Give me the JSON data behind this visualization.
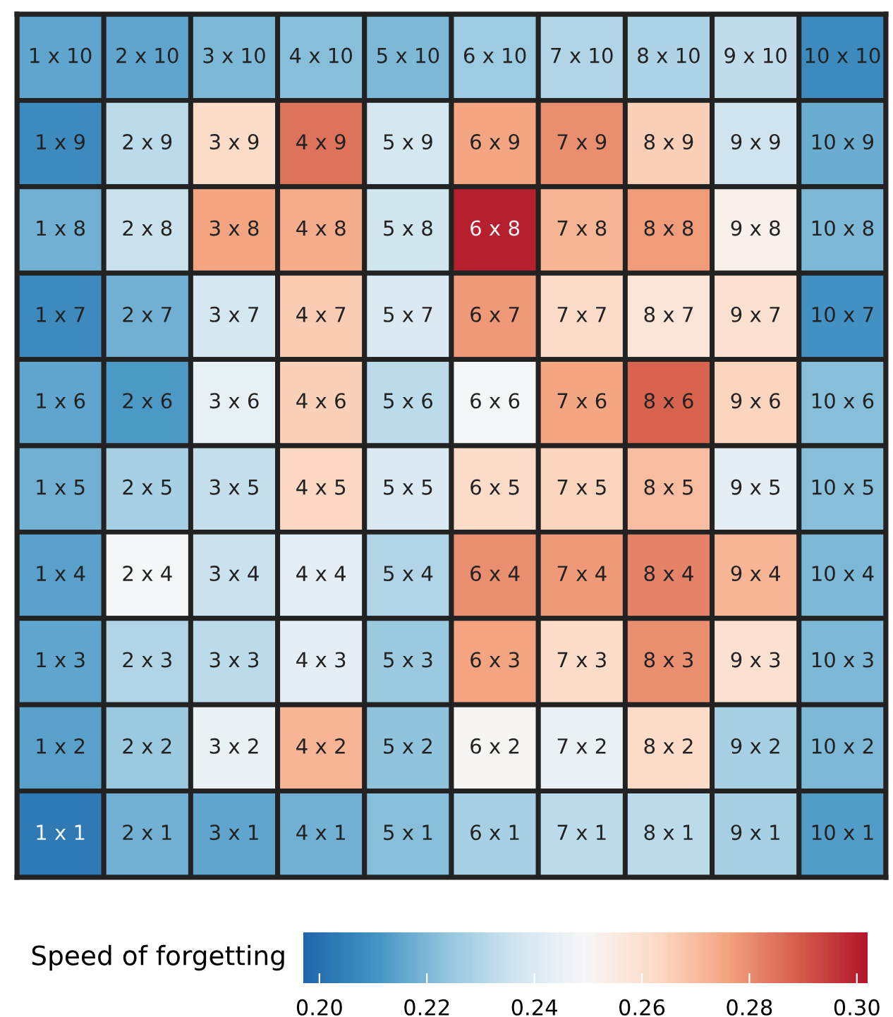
{
  "chart_data": {
    "type": "heatmap",
    "clabel": "Speed of forgetting",
    "categories": [
      null,
      null,
      null,
      null,
      null,
      null,
      null,
      null,
      null,
      null
    ],
    "y_categories": [
      null,
      null,
      null,
      null,
      null,
      null,
      null,
      null,
      null,
      null
    ],
    "cells": [
      [
        0.215,
        0.215,
        0.22,
        0.222,
        0.22,
        0.226,
        0.23,
        0.229,
        0.233,
        0.208
      ],
      [
        0.208,
        0.232,
        0.262,
        0.285,
        0.238,
        0.275,
        0.28,
        0.265,
        0.236,
        0.217
      ],
      [
        0.218,
        0.235,
        0.276,
        0.274,
        0.237,
        0.3,
        0.272,
        0.277,
        0.253,
        0.22
      ],
      [
        0.208,
        0.218,
        0.238,
        0.266,
        0.24,
        0.278,
        0.262,
        0.258,
        0.26,
        0.21
      ],
      [
        0.215,
        0.212,
        0.244,
        0.265,
        0.232,
        0.249,
        0.275,
        0.288,
        0.264,
        0.222
      ],
      [
        0.218,
        0.228,
        0.234,
        0.263,
        0.24,
        0.262,
        0.264,
        0.27,
        0.243,
        0.222
      ],
      [
        0.214,
        0.249,
        0.235,
        0.243,
        0.23,
        0.28,
        0.278,
        0.282,
        0.272,
        0.22
      ],
      [
        0.215,
        0.23,
        0.232,
        0.243,
        0.225,
        0.276,
        0.262,
        0.28,
        0.26,
        0.22
      ],
      [
        0.214,
        0.225,
        0.245,
        0.272,
        0.223,
        0.25,
        0.245,
        0.262,
        0.228,
        0.22
      ],
      [
        0.203,
        0.218,
        0.215,
        0.218,
        0.222,
        0.228,
        0.232,
        0.232,
        0.228,
        0.213
      ]
    ],
    "cell_labels": [
      [
        "1 x 10",
        "2 x 10",
        "3 x 10",
        "4 x 10",
        "5 x 10",
        "6 x 10",
        "7 x 10",
        "8 x 10",
        "9 x 10",
        "10 x 10"
      ],
      [
        "1 x 9",
        "2 x 9",
        "3 x 9",
        "4 x 9",
        "5 x 9",
        "6 x 9",
        "7 x 9",
        "8 x 9",
        "9 x 9",
        "10 x 9"
      ],
      [
        "1 x 8",
        "2 x 8",
        "3 x 8",
        "4 x 8",
        "5 x 8",
        "6 x 8",
        "7 x 8",
        "8 x 8",
        "9 x 8",
        "10 x 8"
      ],
      [
        "1 x 7",
        "2 x 7",
        "3 x 7",
        "4 x 7",
        "5 x 7",
        "6 x 7",
        "7 x 7",
        "8 x 7",
        "9 x 7",
        "10 x 7"
      ],
      [
        "1 x 6",
        "2 x 6",
        "3 x 6",
        "4 x 6",
        "5 x 6",
        "6 x 6",
        "7 x 6",
        "8 x 6",
        "9 x 6",
        "10 x 6"
      ],
      [
        "1 x 5",
        "2 x 5",
        "3 x 5",
        "4 x 5",
        "5 x 5",
        "6 x 5",
        "7 x 5",
        "8 x 5",
        "9 x 5",
        "10 x 5"
      ],
      [
        "1 x 4",
        "2 x 4",
        "3 x 4",
        "4 x 4",
        "5 x 4",
        "6 x 4",
        "7 x 4",
        "8 x 4",
        "9 x 4",
        "10 x 4"
      ],
      [
        "1 x 3",
        "2 x 3",
        "3 x 3",
        "4 x 3",
        "5 x 3",
        "6 x 3",
        "7 x 3",
        "8 x 3",
        "9 x 3",
        "10 x 3"
      ],
      [
        "1 x 2",
        "2 x 2",
        "3 x 2",
        "4 x 2",
        "5 x 2",
        "6 x 2",
        "7 x 2",
        "8 x 2",
        "9 x 2",
        "10 x 2"
      ],
      [
        "1 x 1",
        "2 x 1",
        "3 x 1",
        "4 x 1",
        "5 x 1",
        "6 x 1",
        "7 x 1",
        "8 x 1",
        "9 x 1",
        "10 x 1"
      ]
    ],
    "clim": [
      0.197,
      0.302
    ],
    "cticks": [
      {
        "value": 0.2,
        "label": "0.20"
      },
      {
        "value": 0.22,
        "label": "0.22"
      },
      {
        "value": 0.24,
        "label": "0.24"
      },
      {
        "value": 0.26,
        "label": "0.26"
      },
      {
        "value": 0.28,
        "label": "0.28"
      },
      {
        "value": 0.3,
        "label": "0.30"
      }
    ]
  }
}
